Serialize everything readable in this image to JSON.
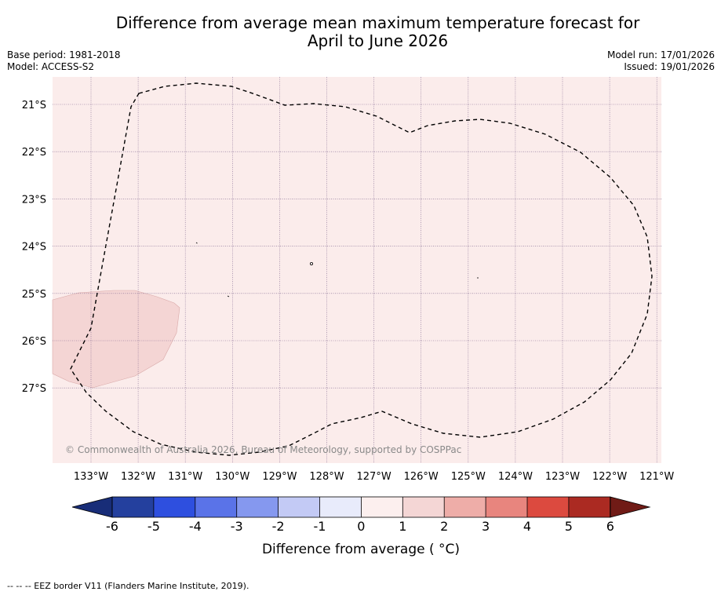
{
  "header": {
    "title_line1": "Difference from average mean maximum temperature forecast for",
    "title_line2": "April to June 2026",
    "base_period": "Base period: 1981-2018",
    "model": "Model: ACCESS-S2",
    "model_run": "Model run: 17/01/2026",
    "issued": "Issued: 19/01/2026"
  },
  "map": {
    "lat_labels": [
      "21°S",
      "22°S",
      "23°S",
      "24°S",
      "25°S",
      "26°S",
      "27°S"
    ],
    "lon_labels": [
      "133°W",
      "132°W",
      "131°W",
      "130°W",
      "129°W",
      "128°W",
      "127°W",
      "126°W",
      "125°W",
      "124°W",
      "123°W",
      "122°W",
      "121°W"
    ],
    "background_category": "0 to 1",
    "highlight_category": "1 to 2",
    "background_color": "#fbeceb",
    "highlight_color": "#f4d5d4",
    "copyright": "© Commonwealth of Australia 2026, Bureau of Meteorology, supported by COSPPac"
  },
  "colorbar": {
    "ticks": [
      "-6",
      "-5",
      "-4",
      "-3",
      "-2",
      "-1",
      "0",
      "1",
      "2",
      "3",
      "4",
      "5",
      "6"
    ],
    "colors": [
      "#24409e",
      "#2e4fdf",
      "#5a73e8",
      "#8598ef",
      "#c3caf5",
      "#e8ebfb",
      "#fcefee",
      "#f4d6d5",
      "#eeada8",
      "#e8857e",
      "#dc4a3f",
      "#ab2a22"
    ],
    "under_color": "#182d78",
    "over_color": "#701b16",
    "label": "Difference from average ( °C)"
  },
  "footnote": "--  --  -- EEZ border V11 (Flanders Marine Institute, 2019)."
}
